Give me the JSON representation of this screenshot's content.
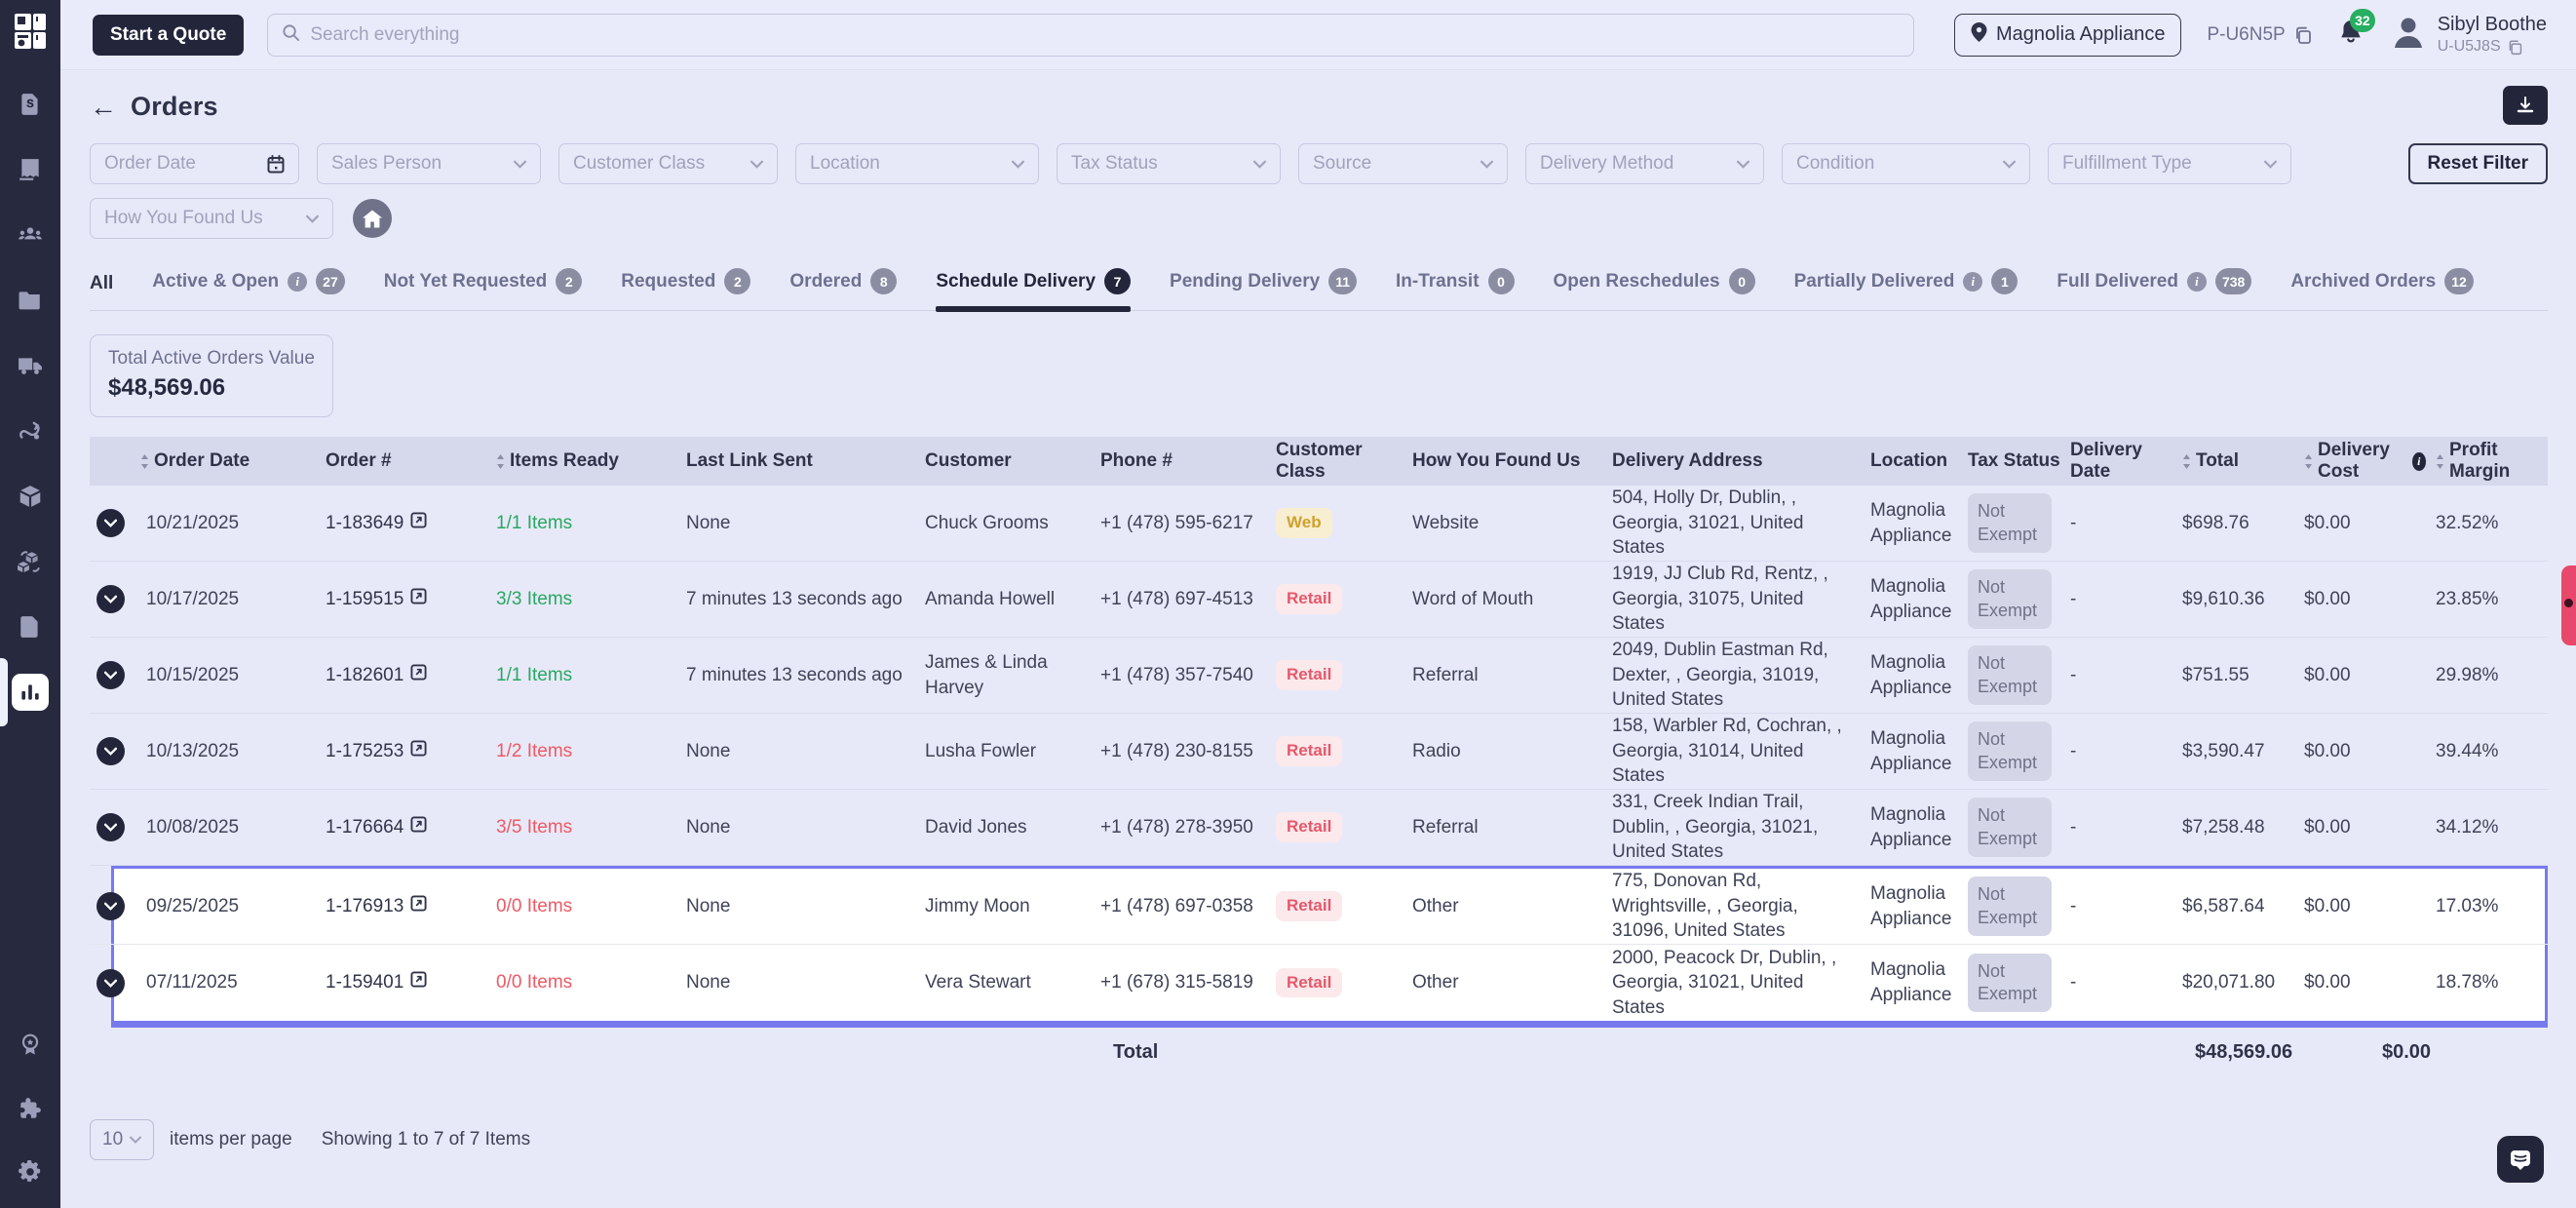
{
  "topbar": {
    "quote_button": "Start a Quote",
    "search_placeholder": "Search everything",
    "location": "Magnolia Appliance",
    "pos_id": "P-U6N5P",
    "notifications_count": "32",
    "user_name": "Sibyl Boothe",
    "user_id": "U-U5J8S"
  },
  "sidebar": {
    "main_icons": [
      "quote-document-icon",
      "orders-receipt-icon",
      "customers-icon",
      "folder-icon",
      "delivery-truck-icon",
      "routes-icon",
      "inventory-box-icon",
      "transfers-icon",
      "documents-icon",
      "reports-chart-icon"
    ],
    "active_icon": "reports-chart-icon",
    "bottom_icons": [
      "rewards-badge-icon",
      "integrations-puzzle-icon",
      "settings-gear-icon"
    ]
  },
  "page": {
    "title": "Orders"
  },
  "filters": {
    "row1": [
      "Order Date",
      "Sales Person",
      "Customer Class",
      "Location",
      "Tax Status",
      "Source",
      "Delivery Method",
      "Condition",
      "Fulfillment Type"
    ],
    "row2": [
      "How You Found Us"
    ],
    "reset_label": "Reset Filter"
  },
  "tabs": {
    "items": [
      {
        "label": "All",
        "count": null,
        "info": false,
        "active": false
      },
      {
        "label": "Active & Open",
        "count": "27",
        "info": true,
        "active": false
      },
      {
        "label": "Not Yet Requested",
        "count": "2",
        "info": false,
        "active": false
      },
      {
        "label": "Requested",
        "count": "2",
        "info": false,
        "active": false
      },
      {
        "label": "Ordered",
        "count": "8",
        "info": false,
        "active": false
      },
      {
        "label": "Schedule Delivery",
        "count": "7",
        "info": false,
        "active": true
      },
      {
        "label": "Pending Delivery",
        "count": "11",
        "info": false,
        "active": false
      },
      {
        "label": "In-Transit",
        "count": "0",
        "info": false,
        "active": false
      },
      {
        "label": "Open Reschedules",
        "count": "0",
        "info": false,
        "active": false
      },
      {
        "label": "Partially Delivered",
        "count": "1",
        "info": true,
        "active": false
      },
      {
        "label": "Full Delivered",
        "count": "738",
        "info": true,
        "active": false
      },
      {
        "label": "Archived Orders",
        "count": "12",
        "info": false,
        "active": false
      }
    ]
  },
  "summary": {
    "label": "Total Active Orders Value",
    "value": "$48,569.06"
  },
  "table": {
    "headers": {
      "order_date": "Order Date",
      "order_no": "Order #",
      "items_ready": "Items Ready",
      "last_link": "Last Link Sent",
      "customer": "Customer",
      "phone": "Phone #",
      "customer_class": "Customer Class",
      "found": "How You Found Us",
      "address": "Delivery Address",
      "location": "Location",
      "tax": "Tax Status",
      "delivery_date": "Delivery Date",
      "total": "Total",
      "delivery_cost": "Delivery Cost",
      "margin": "Profit Margin"
    },
    "rows": [
      {
        "date": "10/21/2025",
        "order_no": "1-183649",
        "items": "1/1 Items",
        "items_ok": true,
        "last_link": "None",
        "customer": "Chuck Grooms",
        "phone": "+1 (478) 595-6217",
        "cls": "Web",
        "cls_type": "web",
        "found": "Website",
        "address": "504, Holly Dr, Dublin, , Georgia, 31021, United States",
        "location": "Magnolia Appliance",
        "tax": "Not Exempt",
        "delivery_date": "-",
        "total": "$698.76",
        "cost": "$0.00",
        "margin": "32.52%",
        "highlighted": false
      },
      {
        "date": "10/17/2025",
        "order_no": "1-159515",
        "items": "3/3 Items",
        "items_ok": true,
        "last_link": "7 minutes 13 seconds ago",
        "customer": "Amanda Howell",
        "phone": "+1 (478) 697-4513",
        "cls": "Retail",
        "cls_type": "retail",
        "found": "Word of Mouth",
        "address": "1919, JJ Club Rd, Rentz, , Georgia, 31075, United States",
        "location": "Magnolia Appliance",
        "tax": "Not Exempt",
        "delivery_date": "-",
        "total": "$9,610.36",
        "cost": "$0.00",
        "margin": "23.85%",
        "highlighted": false
      },
      {
        "date": "10/15/2025",
        "order_no": "1-182601",
        "items": "1/1 Items",
        "items_ok": true,
        "last_link": "7 minutes 13 seconds ago",
        "customer": "James & Linda Harvey",
        "phone": "+1 (478) 357-7540",
        "cls": "Retail",
        "cls_type": "retail",
        "found": "Referral",
        "address": "2049, Dublin Eastman Rd, Dexter, , Georgia, 31019, United States",
        "location": "Magnolia Appliance",
        "tax": "Not Exempt",
        "delivery_date": "-",
        "total": "$751.55",
        "cost": "$0.00",
        "margin": "29.98%",
        "highlighted": false
      },
      {
        "date": "10/13/2025",
        "order_no": "1-175253",
        "items": "1/2 Items",
        "items_ok": false,
        "last_link": "None",
        "customer": "Lusha Fowler",
        "phone": "+1 (478) 230-8155",
        "cls": "Retail",
        "cls_type": "retail",
        "found": "Radio",
        "address": "158, Warbler Rd, Cochran, , Georgia, 31014, United States",
        "location": "Magnolia Appliance",
        "tax": "Not Exempt",
        "delivery_date": "-",
        "total": "$3,590.47",
        "cost": "$0.00",
        "margin": "39.44%",
        "highlighted": false
      },
      {
        "date": "10/08/2025",
        "order_no": "1-176664",
        "items": "3/5 Items",
        "items_ok": false,
        "last_link": "None",
        "customer": "David Jones",
        "phone": "+1 (478) 278-3950",
        "cls": "Retail",
        "cls_type": "retail",
        "found": "Referral",
        "address": "331, Creek Indian Trail, Dublin, , Georgia, 31021, United States",
        "location": "Magnolia Appliance",
        "tax": "Not Exempt",
        "delivery_date": "-",
        "total": "$7,258.48",
        "cost": "$0.00",
        "margin": "34.12%",
        "highlighted": false
      },
      {
        "date": "09/25/2025",
        "order_no": "1-176913",
        "items": "0/0 Items",
        "items_ok": false,
        "last_link": "None",
        "customer": "Jimmy Moon",
        "phone": "+1 (478) 697-0358",
        "cls": "Retail",
        "cls_type": "retail",
        "found": "Other",
        "address": "775, Donovan Rd, Wrightsville, , Georgia, 31096, United States",
        "location": "Magnolia Appliance",
        "tax": "Not Exempt",
        "delivery_date": "-",
        "total": "$6,587.64",
        "cost": "$0.00",
        "margin": "17.03%",
        "highlighted": true
      },
      {
        "date": "07/11/2025",
        "order_no": "1-159401",
        "items": "0/0 Items",
        "items_ok": false,
        "last_link": "None",
        "customer": "Vera Stewart",
        "phone": "+1 (678) 315-5819",
        "cls": "Retail",
        "cls_type": "retail",
        "found": "Other",
        "address": "2000, Peacock Dr, Dublin, , Georgia, 31021, United States",
        "location": "Magnolia Appliance",
        "tax": "Not Exempt",
        "delivery_date": "-",
        "total": "$20,071.80",
        "cost": "$0.00",
        "margin": "18.78%",
        "highlighted": true
      }
    ],
    "footer": {
      "label": "Total",
      "total": "$48,569.06",
      "delivery_cost": "$0.00"
    }
  },
  "pagination": {
    "page_size": "10",
    "per_page_label": "items per page",
    "showing_label": "Showing 1 to 7 of 7 Items"
  },
  "colors": {
    "accent": "#777aec",
    "navy": "#23263b",
    "green": "#27a862",
    "red": "#ee5964",
    "notification_green": "#27ae60",
    "feedback_tab": "#e8486b"
  }
}
